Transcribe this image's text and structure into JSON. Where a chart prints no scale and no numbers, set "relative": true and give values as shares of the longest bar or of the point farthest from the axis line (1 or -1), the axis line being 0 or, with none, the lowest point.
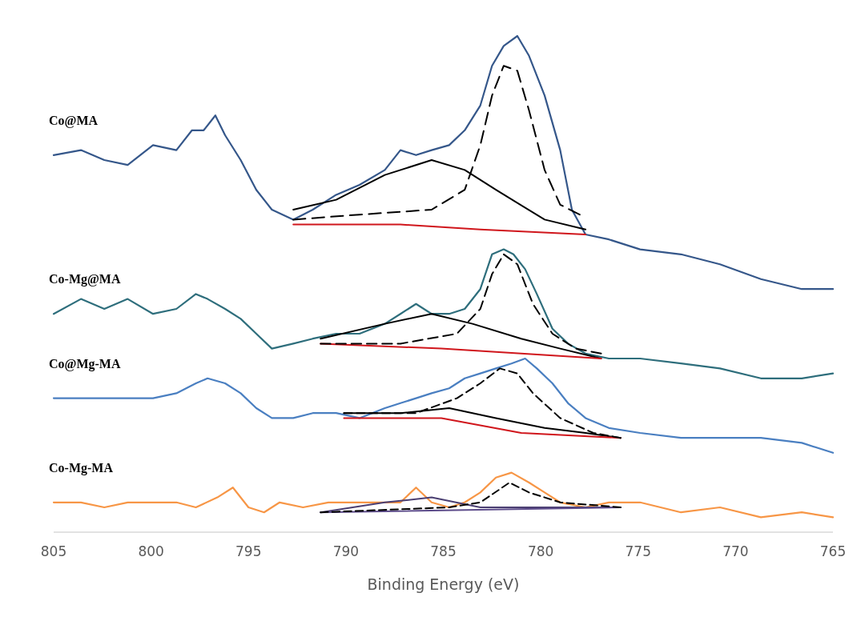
{
  "chart_data": {
    "type": "line",
    "relative": true,
    "xlabel": "Binding Energy (eV)",
    "xlim": [
      805,
      765
    ],
    "xticks": [
      805,
      800,
      795,
      790,
      785,
      780,
      775,
      770,
      765
    ],
    "grid": false,
    "series": [
      {
        "name": "Co@MA",
        "color": "#35578a",
        "line_style": "solid",
        "x": [
          805,
          803.6,
          802.4,
          801.2,
          799.9,
          798.7,
          797.9,
          797.3,
          796.7,
          796.2,
          795.4,
          794.6,
          793.8,
          792.7,
          791.7,
          790.5,
          789.3,
          788.0,
          787.2,
          786.4,
          785.6,
          784.7,
          783.9,
          783.1,
          782.5,
          781.9,
          781.2,
          780.6,
          779.8,
          779.0,
          778.4,
          777.7,
          776.5,
          774.9,
          772.8,
          770.8,
          768.7,
          766.6,
          765
        ],
        "values": [
          0.76,
          0.77,
          0.75,
          0.74,
          0.78,
          0.77,
          0.81,
          0.81,
          0.84,
          0.8,
          0.75,
          0.69,
          0.65,
          0.63,
          0.65,
          0.68,
          0.7,
          0.73,
          0.77,
          0.76,
          0.77,
          0.78,
          0.81,
          0.86,
          0.94,
          0.98,
          1,
          0.96,
          0.88,
          0.77,
          0.65,
          0.6,
          0.59,
          0.57,
          0.56,
          0.54,
          0.51,
          0.49,
          0.49
        ]
      },
      {
        "color": "#000000",
        "line_style": "solid",
        "x": [
          792.7,
          790.5,
          788.0,
          785.6,
          783.9,
          782.3,
          779.8,
          777.7
        ],
        "values": [
          0.65,
          0.67,
          0.72,
          0.75,
          0.73,
          0.69,
          0.63,
          0.61
        ]
      },
      {
        "color": "#000000",
        "line_style": "dashed",
        "x": [
          792.7,
          789.3,
          785.6,
          783.9,
          783.1,
          782.5,
          781.9,
          781.2,
          780.6,
          779.8,
          779.0,
          778.0
        ],
        "values": [
          0.63,
          0.64,
          0.65,
          0.69,
          0.78,
          0.88,
          0.94,
          0.93,
          0.85,
          0.73,
          0.66,
          0.64
        ]
      },
      {
        "color": "#d0161c",
        "line_style": "solid",
        "x": [
          792.7,
          787.2,
          783.1,
          777.7
        ],
        "values": [
          0.62,
          0.62,
          0.61,
          0.6
        ]
      },
      {
        "name": "Co-Mg@MA",
        "color": "#2e6e7c",
        "line_style": "solid",
        "x": [
          805,
          803.6,
          802.4,
          801.2,
          799.9,
          798.7,
          797.7,
          797.1,
          796.2,
          795.4,
          794.6,
          793.8,
          792.7,
          791.7,
          790.5,
          789.3,
          788.0,
          787.2,
          786.4,
          785.6,
          784.7,
          783.9,
          783.1,
          782.5,
          781.9,
          781.4,
          780.8,
          780.2,
          779.4,
          778.6,
          777.7,
          776.5,
          774.9,
          772.8,
          770.8,
          768.7,
          766.6,
          765
        ],
        "values": [
          0.44,
          0.47,
          0.45,
          0.47,
          0.44,
          0.45,
          0.48,
          0.47,
          0.45,
          0.43,
          0.4,
          0.37,
          0.38,
          0.39,
          0.4,
          0.4,
          0.42,
          0.44,
          0.46,
          0.44,
          0.44,
          0.45,
          0.49,
          0.56,
          0.57,
          0.56,
          0.53,
          0.48,
          0.41,
          0.38,
          0.36,
          0.35,
          0.35,
          0.34,
          0.33,
          0.31,
          0.31,
          0.32
        ]
      },
      {
        "color": "#000000",
        "line_style": "solid",
        "x": [
          791.3,
          788.0,
          785.6,
          783.5,
          781.0,
          779.0,
          776.9
        ],
        "values": [
          0.39,
          0.42,
          0.44,
          0.42,
          0.39,
          0.37,
          0.35
        ]
      },
      {
        "color": "#000000",
        "line_style": "dashed",
        "x": [
          791.3,
          787.2,
          784.3,
          783.1,
          782.5,
          781.9,
          781.2,
          780.4,
          779.4,
          778.2,
          776.9
        ],
        "values": [
          0.38,
          0.38,
          0.4,
          0.45,
          0.52,
          0.56,
          0.54,
          0.46,
          0.4,
          0.37,
          0.36
        ]
      },
      {
        "color": "#d0161c",
        "line_style": "solid",
        "x": [
          791.3,
          785.1,
          781.0,
          776.9
        ],
        "values": [
          0.38,
          0.37,
          0.36,
          0.35
        ]
      },
      {
        "name": "Co@Mg-MA",
        "color": "#4a7fc1",
        "line_style": "solid",
        "x": [
          805,
          803.6,
          802.4,
          801.2,
          799.9,
          798.7,
          797.7,
          797.1,
          796.2,
          795.4,
          794.6,
          793.8,
          792.7,
          791.7,
          790.5,
          789.3,
          788.0,
          787.2,
          786.4,
          785.6,
          784.7,
          783.9,
          783.1,
          782.3,
          781.5,
          780.8,
          780.2,
          779.4,
          778.6,
          777.7,
          776.5,
          774.9,
          772.8,
          770.8,
          768.7,
          766.6,
          765
        ],
        "values": [
          0.27,
          0.27,
          0.27,
          0.27,
          0.27,
          0.28,
          0.3,
          0.31,
          0.3,
          0.28,
          0.25,
          0.23,
          0.23,
          0.24,
          0.24,
          0.23,
          0.25,
          0.26,
          0.27,
          0.28,
          0.29,
          0.31,
          0.32,
          0.33,
          0.34,
          0.35,
          0.33,
          0.3,
          0.26,
          0.23,
          0.21,
          0.2,
          0.19,
          0.19,
          0.19,
          0.18,
          0.16
        ]
      },
      {
        "color": "#000000",
        "line_style": "solid",
        "x": [
          790.1,
          787.2,
          784.7,
          782.3,
          779.8,
          777.7,
          775.9
        ],
        "values": [
          0.24,
          0.24,
          0.25,
          0.23,
          0.21,
          0.2,
          0.19
        ]
      },
      {
        "color": "#000000",
        "line_style": "dashed",
        "x": [
          790.1,
          786.4,
          784.3,
          783.1,
          782.1,
          781.2,
          780.4,
          779.0,
          777.3,
          775.9
        ],
        "values": [
          0.24,
          0.24,
          0.27,
          0.3,
          0.33,
          0.32,
          0.28,
          0.23,
          0.2,
          0.19
        ]
      },
      {
        "color": "#d0161c",
        "line_style": "solid",
        "x": [
          790.1,
          785.1,
          781.0,
          775.9
        ],
        "values": [
          0.23,
          0.23,
          0.2,
          0.19
        ]
      },
      {
        "name": "Co-Mg-MA",
        "color": "#f79646",
        "line_style": "solid",
        "x": [
          805,
          803.6,
          802.4,
          801.2,
          799.9,
          798.7,
          797.7,
          796.6,
          795.8,
          795.0,
          794.2,
          793.4,
          792.2,
          790.9,
          789.7,
          788.4,
          787.2,
          786.4,
          785.6,
          784.7,
          783.9,
          783.1,
          782.3,
          781.5,
          780.6,
          779.8,
          779.0,
          777.7,
          776.5,
          774.9,
          772.8,
          770.8,
          768.7,
          766.6,
          765
        ],
        "values": [
          0.06,
          0.06,
          0.05,
          0.06,
          0.06,
          0.06,
          0.05,
          0.07,
          0.09,
          0.05,
          0.04,
          0.06,
          0.05,
          0.06,
          0.06,
          0.06,
          0.06,
          0.09,
          0.06,
          0.05,
          0.06,
          0.08,
          0.11,
          0.12,
          0.1,
          0.08,
          0.06,
          0.05,
          0.06,
          0.06,
          0.04,
          0.05,
          0.03,
          0.04,
          0.03
        ]
      },
      {
        "color": "#4b3f72",
        "line_style": "solid",
        "x": [
          791.3,
          788.0,
          785.6,
          783.1,
          779.0,
          775.9
        ],
        "values": [
          0.04,
          0.06,
          0.07,
          0.05,
          0.05,
          0.05
        ]
      },
      {
        "color": "#000000",
        "line_style": "dashed",
        "x": [
          791.3,
          784.7,
          783.1,
          781.6,
          780.6,
          779.0,
          775.9
        ],
        "values": [
          0.04,
          0.05,
          0.06,
          0.1,
          0.08,
          0.06,
          0.05
        ]
      },
      {
        "color": "#5c4b8a",
        "line_style": "solid",
        "x": [
          791.3,
          775.9
        ],
        "values": [
          0.04,
          0.05
        ]
      }
    ]
  }
}
